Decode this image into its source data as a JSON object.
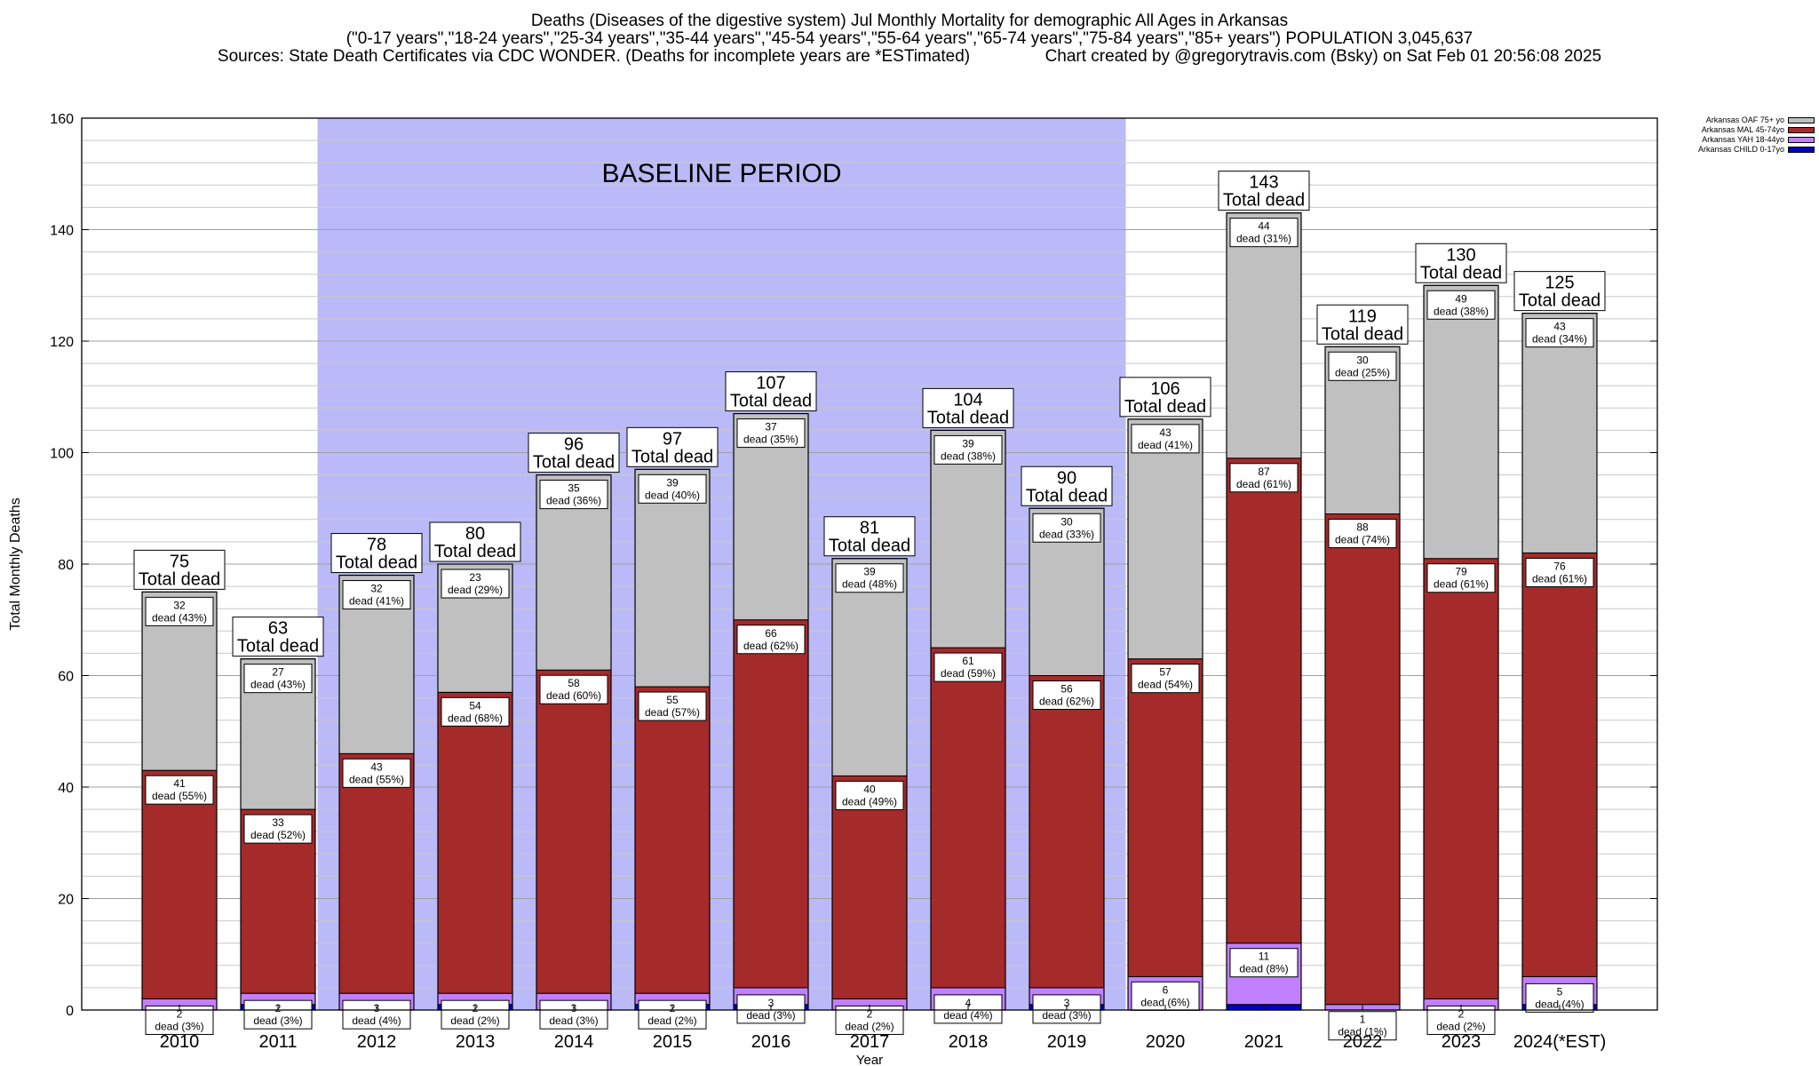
{
  "chart_data": {
    "type": "bar",
    "stacked": true,
    "title": "Deaths (Diseases of the digestive system) Jul Monthly Mortality for demographic All Ages in Arkansas",
    "subtitle": "(\"0-17 years\",\"18-24 years\",\"25-34 years\",\"35-44 years\",\"45-54 years\",\"55-64 years\",\"65-74 years\",\"75-84 years\",\"85+ years\") POPULATION 3,045,637",
    "source": "Sources: State Death Certificates via CDC WONDER. (Deaths for incomplete years are *ESTimated)",
    "credit": "Chart created by @gregorytravis.com (Bsky) on Sat Feb 01 20:56:08 2025",
    "xlabel": "Year",
    "ylabel": "Total Monthly Deaths",
    "ylim": [
      0,
      160
    ],
    "yticks": [
      0,
      20,
      40,
      60,
      80,
      100,
      120,
      140,
      160
    ],
    "grid": true,
    "legend_position": "top-right",
    "categories": [
      "2010",
      "2011",
      "2012",
      "2013",
      "2014",
      "2015",
      "2016",
      "2017",
      "2018",
      "2019",
      "2020",
      "2021",
      "2022",
      "2023",
      "2024(*EST)"
    ],
    "baseline": {
      "label": "BASELINE PERIOD",
      "from": "2012",
      "to": "2019",
      "color": "#babaf8"
    },
    "totals": [
      75,
      63,
      78,
      80,
      96,
      97,
      107,
      81,
      104,
      90,
      106,
      143,
      119,
      130,
      125
    ],
    "total_suffix": "Total dead",
    "series": [
      {
        "name": "Arkansas CHILD 0-17yo",
        "color": "#0000c8",
        "values": [
          0,
          1,
          0,
          1,
          0,
          1,
          1,
          0,
          0,
          1,
          0,
          1,
          0,
          0,
          1
        ],
        "labels": []
      },
      {
        "name": "Arkansas YAH 18-44yo",
        "color": "#c080ff",
        "values": [
          2,
          2,
          3,
          2,
          3,
          2,
          3,
          2,
          4,
          3,
          6,
          11,
          1,
          2,
          5
        ],
        "labels": [
          "2",
          "2",
          "3",
          "2",
          "3",
          "2",
          "3",
          "2",
          "4",
          "3",
          "6",
          "11",
          "1",
          "2",
          "5"
        ],
        "labels2": [
          "dead (3%)",
          "dead (3%)",
          "dead (4%)",
          "dead (2%)",
          "dead (3%)",
          "dead (2%)",
          "dead (3%)",
          "dead (2%)",
          "dead (4%)",
          "dead (3%)",
          "dead (6%)",
          "dead (8%)",
          "dead (1%)",
          "dead (2%)",
          "dead (4%)"
        ]
      },
      {
        "name": "Arkansas MAL 45-74yo",
        "color": "#a52a2a",
        "values": [
          41,
          33,
          43,
          54,
          58,
          55,
          66,
          40,
          61,
          56,
          57,
          87,
          88,
          79,
          76
        ],
        "labels": [
          "41",
          "33",
          "43",
          "54",
          "58",
          "55",
          "66",
          "40",
          "61",
          "56",
          "57",
          "87",
          "88",
          "79",
          "76"
        ],
        "labels2": [
          "dead (55%)",
          "dead (52%)",
          "dead (55%)",
          "dead (68%)",
          "dead (60%)",
          "dead (57%)",
          "dead (62%)",
          "dead (49%)",
          "dead (59%)",
          "dead (62%)",
          "dead (54%)",
          "dead (61%)",
          "dead (74%)",
          "dead (61%)",
          "dead (61%)"
        ]
      },
      {
        "name": "Arkansas OAF 75+ yo",
        "color": "#c0c0c0",
        "values": [
          32,
          27,
          32,
          23,
          35,
          39,
          37,
          39,
          39,
          30,
          43,
          44,
          30,
          49,
          43
        ],
        "labels": [
          "32",
          "27",
          "32",
          "23",
          "35",
          "39",
          "37",
          "39",
          "39",
          "30",
          "43",
          "44",
          "30",
          "49",
          "43"
        ],
        "labels2": [
          "dead (43%)",
          "dead (43%)",
          "dead (41%)",
          "dead (29%)",
          "dead (36%)",
          "dead (40%)",
          "dead (35%)",
          "dead (48%)",
          "dead (38%)",
          "dead (33%)",
          "dead (41%)",
          "dead (31%)",
          "dead (25%)",
          "dead (38%)",
          "dead (34%)"
        ]
      }
    ],
    "legend": [
      {
        "name": "Arkansas OAF 75+ yo",
        "color": "#c0c0c0"
      },
      {
        "name": "Arkansas MAL 45-74yo",
        "color": "#a52a2a"
      },
      {
        "name": "Arkansas YAH 18-44yo",
        "color": "#c080ff"
      },
      {
        "name": "Arkansas CHILD 0-17yo",
        "color": "#0000c8"
      }
    ]
  }
}
